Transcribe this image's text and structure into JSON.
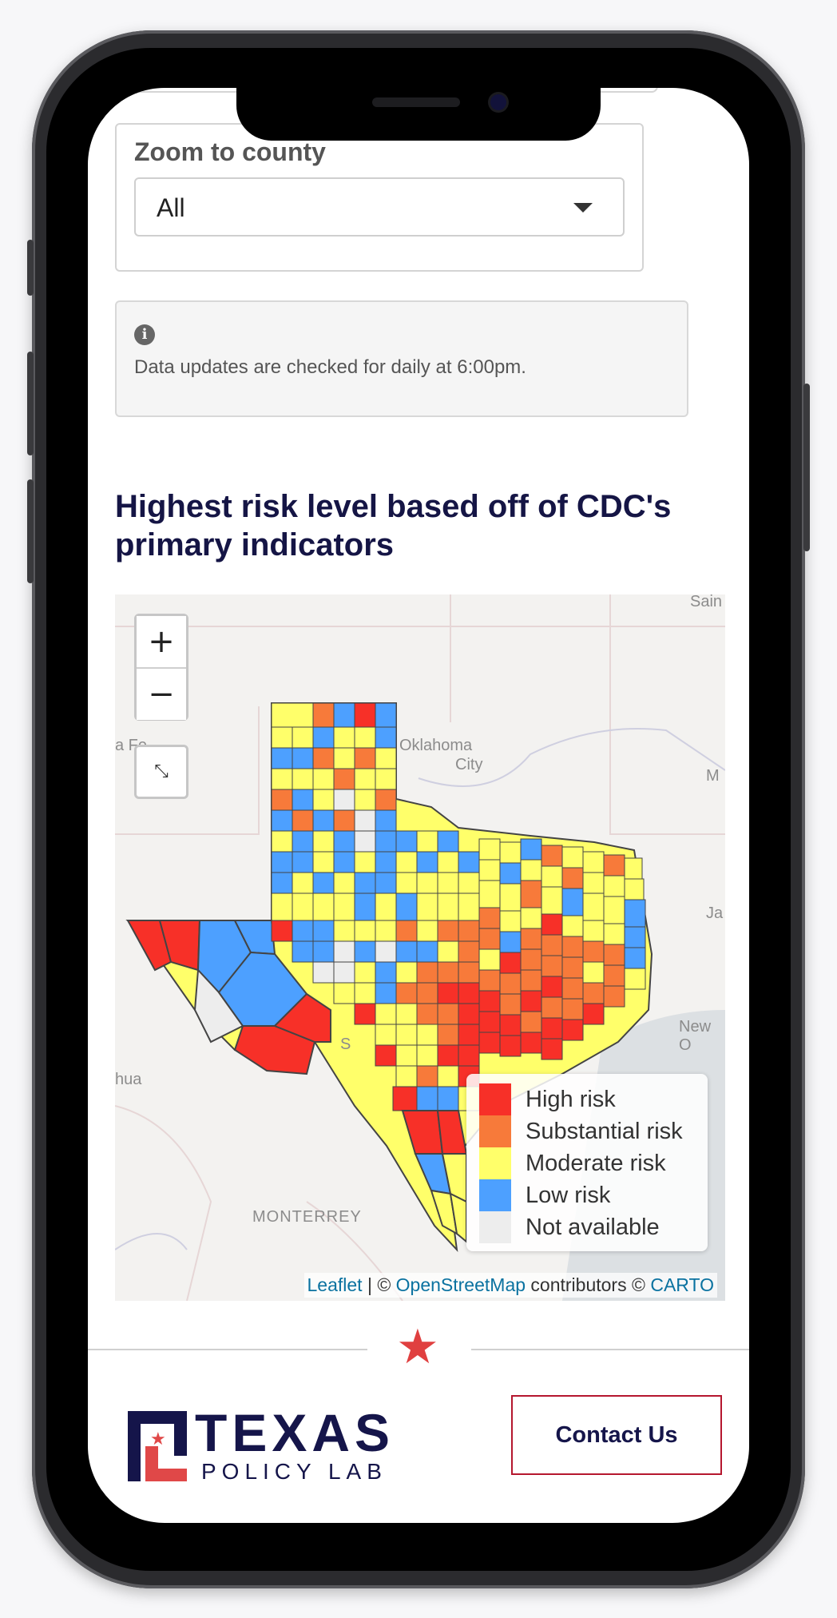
{
  "zoom_county": {
    "label": "Zoom to county",
    "selected": "All"
  },
  "info": {
    "text": "Data updates are checked for daily at 6:00pm."
  },
  "section": {
    "heading": "Highest risk level based off of CDC's primary indicators"
  },
  "map": {
    "controls": {
      "zoom_in": "+",
      "zoom_out": "−"
    },
    "labels": {
      "oklahoma_line1": "Oklahoma",
      "oklahoma_line2": "City",
      "monterrey": "MONTERREY",
      "new_orleans": "New O",
      "saint": "Sain",
      "santa_fe": "a Fe",
      "chihuahua": "hua",
      "m_edge": "M",
      "j_edge": "Ja",
      "s_label": "S"
    },
    "legend": [
      {
        "label": "High risk",
        "color": "#f73028"
      },
      {
        "label": "Substantial risk",
        "color": "#f77a3a"
      },
      {
        "label": "Moderate risk",
        "color": "#ffff6a"
      },
      {
        "label": "Low risk",
        "color": "#4da0ff"
      },
      {
        "label": "Not available",
        "color": "#ededed"
      }
    ],
    "attribution": {
      "leaflet": "Leaflet",
      "sep": " | © ",
      "osm": "OpenStreetMap",
      "contrib": " contributors © ",
      "carto": "CARTO"
    }
  },
  "footer": {
    "logo_main": "TEXAS",
    "logo_sub": "POLICY LAB",
    "contact": "Contact Us"
  }
}
